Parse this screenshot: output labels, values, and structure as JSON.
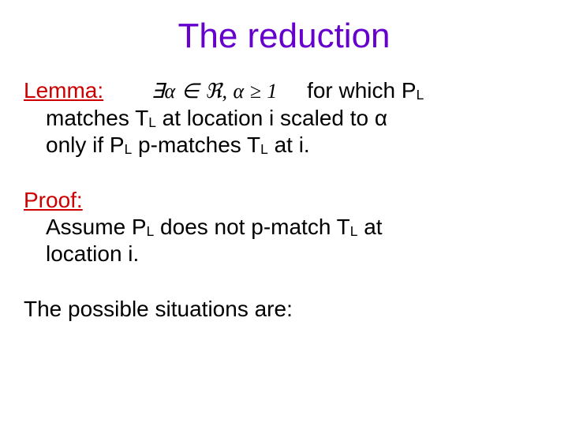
{
  "colors": {
    "title": "#6600cc",
    "label": "#cc0000",
    "body": "#000000",
    "background": "#ffffff"
  },
  "fonts": {
    "body_family": "Comic Sans MS",
    "title_size_pt": 44,
    "body_size_pt": 28
  },
  "title": "The reduction",
  "lemma": {
    "label": "Lemma:",
    "math": "∃α ∈ ℜ,   α ≥ 1",
    "tail": "for which P",
    "sub1": "L",
    "line2a": "matches T",
    "sub2": "L",
    "line2b": " at location i scaled to α",
    "line3a": "only if P",
    "sub3": "L",
    "line3b": " p-matches T",
    "sub4": "L",
    "line3c": " at i."
  },
  "proof": {
    "label": "Proof:",
    "line1a": "Assume P",
    "sub1": "L",
    "line1b": " does not p-match T",
    "sub2": "L",
    "line1c": " at",
    "line2": "location i."
  },
  "closing": "The possible situations are:"
}
